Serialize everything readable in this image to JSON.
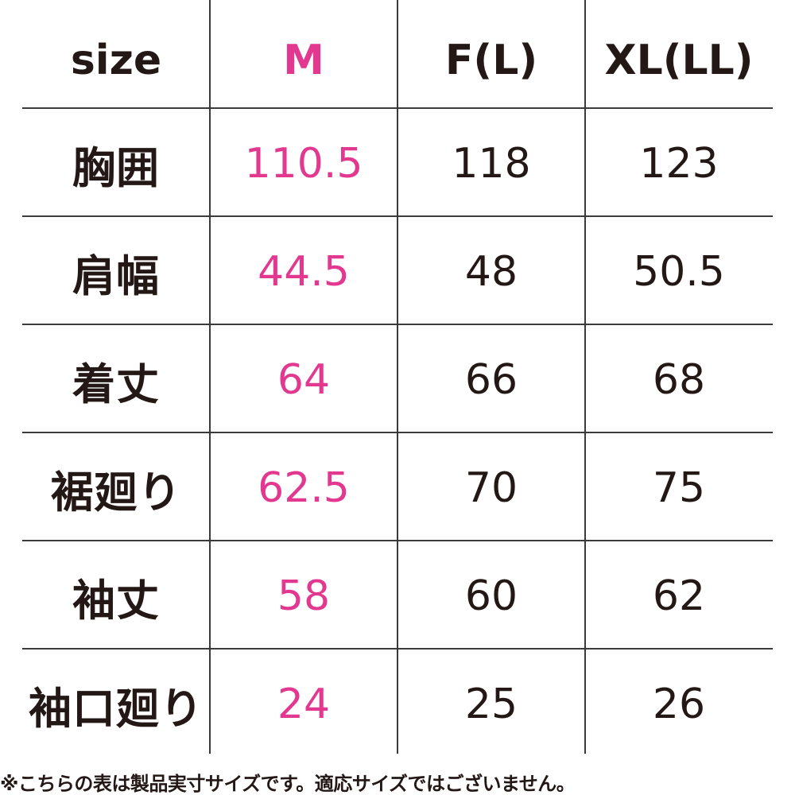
{
  "table": {
    "header": [
      "size",
      "M",
      "F(L)",
      "XL(LL)"
    ],
    "rows": [
      [
        "胸囲",
        "110.5",
        "118",
        "123"
      ],
      [
        "肩幅",
        "44.5",
        "48",
        "50.5"
      ],
      [
        "着丈",
        "64",
        "66",
        "68"
      ],
      [
        "裾廻り",
        "62.5",
        "70",
        "75"
      ],
      [
        "袖丈",
        "58",
        "60",
        "62"
      ],
      [
        "袖口廻り",
        "24",
        "25",
        "26"
      ]
    ]
  },
  "footnote": "※こちらの表は製品実寸サイズです。適応サイズではございません。"
}
